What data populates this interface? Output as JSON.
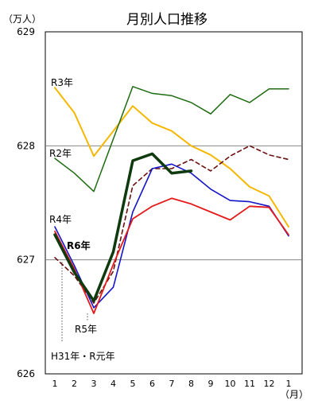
{
  "chart_data": {
    "type": "line",
    "title": "月別人口推移",
    "ylabel": "（万人）",
    "xlabel": "（月）",
    "x": [
      "1",
      "2",
      "3",
      "4",
      "5",
      "6",
      "7",
      "8",
      "9",
      "10",
      "11",
      "12",
      "1"
    ],
    "ylim": [
      626,
      629
    ],
    "yticks": [
      "629",
      "628",
      "627",
      "626"
    ],
    "grid": true,
    "series": [
      {
        "name": "R3年",
        "color": "#f5b800",
        "dash": "",
        "width": 2,
        "values": [
          628.51,
          628.29,
          627.91,
          628.13,
          628.35,
          628.2,
          628.13,
          628.0,
          627.92,
          627.8,
          627.64,
          627.56,
          627.29
        ]
      },
      {
        "name": "R2年",
        "color": "#1f6b12",
        "dash": "",
        "width": 1.5,
        "values": [
          627.89,
          627.76,
          627.6,
          628.06,
          628.52,
          628.46,
          628.44,
          628.38,
          628.28,
          628.45,
          628.38,
          628.5,
          628.5
        ]
      },
      {
        "name": "H31年・R元年",
        "color": "#6b0f0f",
        "dash": "5,4",
        "width": 1.6,
        "values": [
          627.02,
          626.86,
          626.62,
          626.9,
          627.65,
          627.8,
          627.8,
          627.88,
          627.78,
          627.91,
          628.0,
          627.92,
          627.88
        ]
      },
      {
        "name": "R4年",
        "color": "#1515c8",
        "dash": "",
        "width": 1.6,
        "values": [
          627.29,
          626.95,
          626.58,
          626.76,
          627.42,
          627.8,
          627.84,
          627.76,
          627.62,
          627.52,
          627.51,
          627.47,
          627.21
        ]
      },
      {
        "name": "R5年",
        "color": "#e41a1a",
        "dash": "",
        "width": 1.8,
        "values": [
          627.25,
          626.92,
          626.53,
          626.96,
          627.36,
          627.47,
          627.54,
          627.49,
          627.42,
          627.35,
          627.47,
          627.46,
          627.22
        ]
      },
      {
        "name": "R6年",
        "color": "#0e3a0e",
        "dash": "",
        "width": 3.5,
        "values": [
          627.22,
          626.89,
          626.64,
          627.07,
          627.87,
          627.93,
          627.76,
          627.78,
          null,
          null,
          null,
          null,
          null
        ]
      }
    ],
    "annotations": [
      "R3年",
      "R2年",
      "R4年",
      "R6年",
      "R5年",
      "H31年・R元年"
    ]
  }
}
